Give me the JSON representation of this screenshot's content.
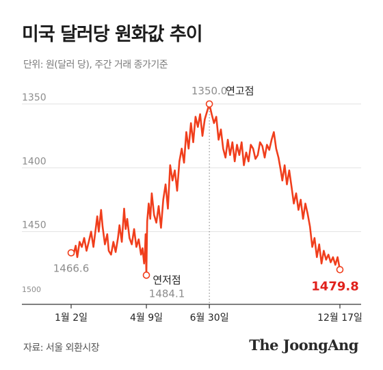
{
  "header": {
    "title": "미국 달러당 원화값 추이",
    "subtitle": "단위: 원(달러 당), 주간 거래 종가기준"
  },
  "footer": {
    "source": "자료: 서울 외환시장",
    "brand": "The JoongAng"
  },
  "colors": {
    "line": "#f03e1c",
    "accent_red": "#e0211c",
    "grid": "#e2e2e2",
    "axis": "#333333"
  },
  "chart_data": {
    "type": "line",
    "title": "미국 달러당 원화값 추이",
    "unit": "원(달러 당), 주간 거래 종가기준",
    "y_inverted": true,
    "ylim": [
      1350,
      1500
    ],
    "y_ticks": [
      {
        "value": 1350,
        "label": "1350"
      },
      {
        "value": 1400,
        "label": "1400"
      },
      {
        "value": 1450,
        "label": "1450"
      },
      {
        "value": 1500,
        "label": "1500"
      }
    ],
    "x_ticks": [
      {
        "date": "2024-01-02",
        "label": "1월 2일"
      },
      {
        "date": "2024-04-09",
        "label": "4월 9일"
      },
      {
        "date": "2024-06-30",
        "label": "6월 30일"
      },
      {
        "date": "2024-12-17",
        "label": "12월 17일"
      }
    ],
    "grid": true,
    "annotations": [
      {
        "date": "2024-01-02",
        "value": 1466.6,
        "value_label": "1466.6"
      },
      {
        "date": "2024-04-09",
        "value": 1484.1,
        "value_label": "1484.1",
        "label": "연저점"
      },
      {
        "date": "2024-06-30",
        "value": 1350.0,
        "value_label": "1350.0",
        "label": "연고점"
      },
      {
        "date": "2024-12-17",
        "value": 1479.8,
        "value_label": "1479.8"
      }
    ],
    "series": [
      {
        "points": [
          [
            "2024-01-02",
            1466.6
          ],
          [
            "2024-01-05",
            1468
          ],
          [
            "2024-01-08",
            1461
          ],
          [
            "2024-01-10",
            1470
          ],
          [
            "2024-01-13",
            1458
          ],
          [
            "2024-01-16",
            1462
          ],
          [
            "2024-01-19",
            1455
          ],
          [
            "2024-01-22",
            1465
          ],
          [
            "2024-01-25",
            1458
          ],
          [
            "2024-01-28",
            1450
          ],
          [
            "2024-01-31",
            1462
          ],
          [
            "2024-02-03",
            1448
          ],
          [
            "2024-02-05",
            1438
          ],
          [
            "2024-02-07",
            1450
          ],
          [
            "2024-02-10",
            1433
          ],
          [
            "2024-02-12",
            1446
          ],
          [
            "2024-02-15",
            1460
          ],
          [
            "2024-02-18",
            1452
          ],
          [
            "2024-02-20",
            1465
          ],
          [
            "2024-02-23",
            1468
          ],
          [
            "2024-02-26",
            1458
          ],
          [
            "2024-02-29",
            1466
          ],
          [
            "2024-03-03",
            1455
          ],
          [
            "2024-03-05",
            1445
          ],
          [
            "2024-03-08",
            1458
          ],
          [
            "2024-03-11",
            1432
          ],
          [
            "2024-03-13",
            1448
          ],
          [
            "2024-03-15",
            1440
          ],
          [
            "2024-03-18",
            1455
          ],
          [
            "2024-03-21",
            1460
          ],
          [
            "2024-03-24",
            1448
          ],
          [
            "2024-03-27",
            1462
          ],
          [
            "2024-03-30",
            1456
          ],
          [
            "2024-04-02",
            1468
          ],
          [
            "2024-04-04",
            1463
          ],
          [
            "2024-04-06",
            1475
          ],
          [
            "2024-04-07",
            1468
          ],
          [
            "2024-04-08",
            1452
          ],
          [
            "2024-04-09",
            1484.1
          ],
          [
            "2024-04-10",
            1442
          ],
          [
            "2024-04-12",
            1428
          ],
          [
            "2024-04-14",
            1440
          ],
          [
            "2024-04-16",
            1420
          ],
          [
            "2024-04-19",
            1437
          ],
          [
            "2024-04-22",
            1443
          ],
          [
            "2024-04-25",
            1430
          ],
          [
            "2024-04-28",
            1447
          ],
          [
            "2024-05-01",
            1425
          ],
          [
            "2024-05-04",
            1413
          ],
          [
            "2024-05-07",
            1432
          ],
          [
            "2024-05-10",
            1398
          ],
          [
            "2024-05-13",
            1410
          ],
          [
            "2024-05-16",
            1402
          ],
          [
            "2024-05-19",
            1418
          ],
          [
            "2024-05-22",
            1395
          ],
          [
            "2024-05-25",
            1385
          ],
          [
            "2024-05-28",
            1396
          ],
          [
            "2024-05-31",
            1372
          ],
          [
            "2024-06-03",
            1385
          ],
          [
            "2024-06-06",
            1365
          ],
          [
            "2024-06-09",
            1380
          ],
          [
            "2024-06-12",
            1360
          ],
          [
            "2024-06-15",
            1368
          ],
          [
            "2024-06-18",
            1358
          ],
          [
            "2024-06-21",
            1375
          ],
          [
            "2024-06-24",
            1362
          ],
          [
            "2024-06-27",
            1356
          ],
          [
            "2024-06-30",
            1350.0
          ],
          [
            "2024-07-03",
            1358
          ],
          [
            "2024-07-06",
            1365
          ],
          [
            "2024-07-09",
            1360
          ],
          [
            "2024-07-12",
            1378
          ],
          [
            "2024-07-15",
            1370
          ],
          [
            "2024-07-18",
            1385
          ],
          [
            "2024-07-21",
            1392
          ],
          [
            "2024-07-24",
            1378
          ],
          [
            "2024-07-27",
            1390
          ],
          [
            "2024-07-30",
            1380
          ],
          [
            "2024-08-02",
            1395
          ],
          [
            "2024-08-05",
            1382
          ],
          [
            "2024-08-08",
            1390
          ],
          [
            "2024-08-11",
            1380
          ],
          [
            "2024-08-14",
            1398
          ],
          [
            "2024-08-17",
            1388
          ],
          [
            "2024-08-20",
            1395
          ],
          [
            "2024-08-23",
            1382
          ],
          [
            "2024-08-26",
            1385
          ],
          [
            "2024-08-29",
            1393
          ],
          [
            "2024-09-01",
            1390
          ],
          [
            "2024-09-04",
            1380
          ],
          [
            "2024-09-07",
            1383
          ],
          [
            "2024-09-10",
            1392
          ],
          [
            "2024-09-13",
            1382
          ],
          [
            "2024-09-16",
            1386
          ],
          [
            "2024-09-19",
            1378
          ],
          [
            "2024-09-22",
            1372
          ],
          [
            "2024-09-25",
            1385
          ],
          [
            "2024-09-28",
            1392
          ],
          [
            "2024-10-01",
            1402
          ],
          [
            "2024-10-03",
            1410
          ],
          [
            "2024-10-06",
            1398
          ],
          [
            "2024-10-09",
            1413
          ],
          [
            "2024-10-12",
            1402
          ],
          [
            "2024-10-15",
            1415
          ],
          [
            "2024-10-18",
            1428
          ],
          [
            "2024-10-21",
            1420
          ],
          [
            "2024-10-24",
            1433
          ],
          [
            "2024-10-27",
            1425
          ],
          [
            "2024-10-30",
            1440
          ],
          [
            "2024-11-02",
            1428
          ],
          [
            "2024-11-05",
            1436
          ],
          [
            "2024-11-08",
            1446
          ],
          [
            "2024-11-11",
            1462
          ],
          [
            "2024-11-14",
            1455
          ],
          [
            "2024-11-17",
            1470
          ],
          [
            "2024-11-20",
            1460
          ],
          [
            "2024-11-23",
            1475
          ],
          [
            "2024-11-26",
            1465
          ],
          [
            "2024-11-29",
            1472
          ],
          [
            "2024-12-02",
            1468
          ],
          [
            "2024-12-05",
            1474
          ],
          [
            "2024-12-08",
            1470
          ],
          [
            "2024-12-11",
            1476
          ],
          [
            "2024-12-14",
            1470
          ],
          [
            "2024-12-17",
            1479.8
          ]
        ]
      }
    ]
  }
}
